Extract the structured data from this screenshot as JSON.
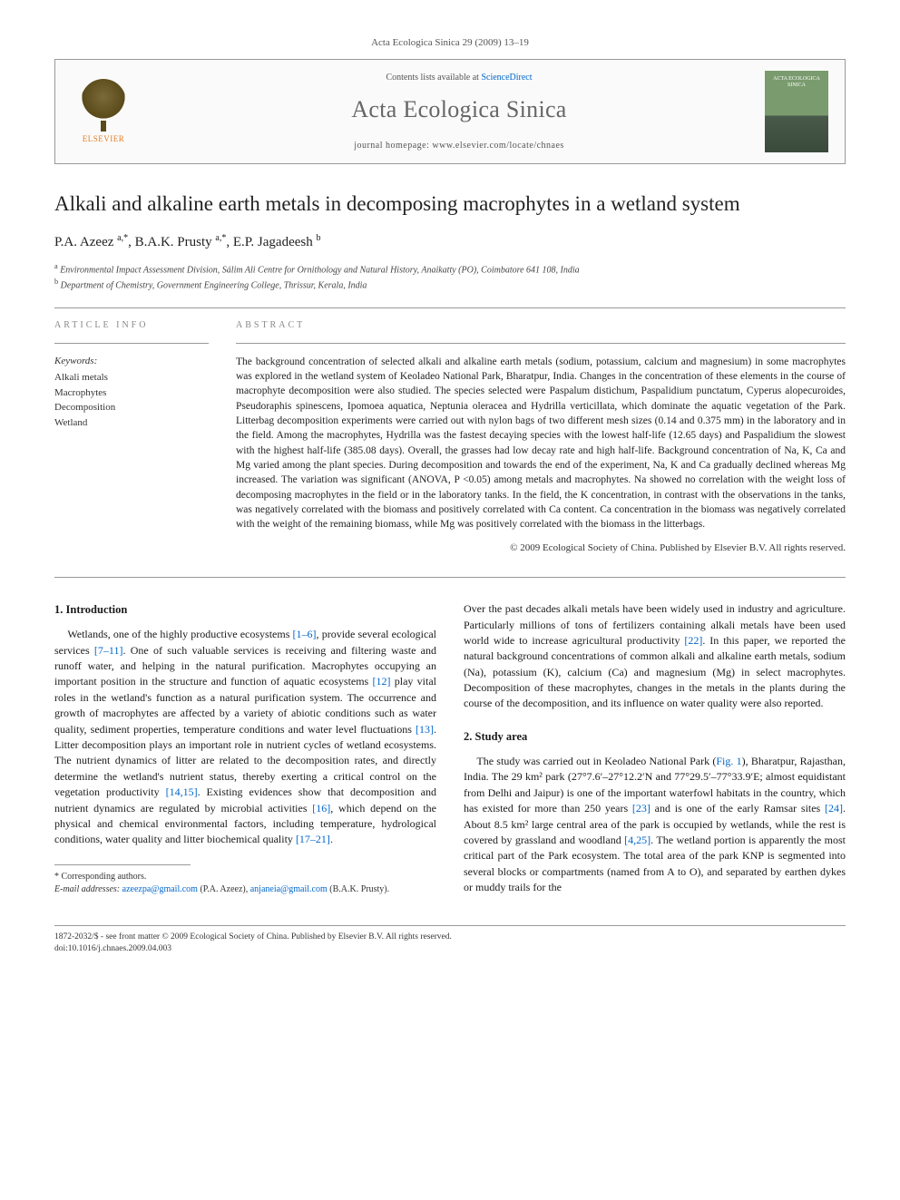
{
  "journal_ref": "Acta Ecologica Sinica 29 (2009) 13–19",
  "header": {
    "contents_prefix": "Contents lists available at ",
    "contents_link": "ScienceDirect",
    "journal_title": "Acta Ecologica Sinica",
    "homepage_prefix": "journal homepage: ",
    "homepage_url": "www.elsevier.com/locate/chnaes",
    "publisher_name": "ELSEVIER",
    "cover_text": "ACTA ECOLOGICA SINICA"
  },
  "article": {
    "title": "Alkali and alkaline earth metals in decomposing macrophytes in a wetland system",
    "authors_html": "P.A. Azeez <sup>a,*</sup>, B.A.K. Prusty <sup>a,*</sup>, E.P. Jagadeesh <sup>b</sup>",
    "affiliations": [
      {
        "sup": "a",
        "text": "Environmental Impact Assessment Division, Sálim Ali Centre for Ornithology and Natural History, Anaikatty (PO), Coimbatore 641 108, India"
      },
      {
        "sup": "b",
        "text": "Department of Chemistry, Government Engineering College, Thrissur, Kerala, India"
      }
    ]
  },
  "info_label": "ARTICLE INFO",
  "abstract_label": "ABSTRACT",
  "keywords_label": "Keywords:",
  "keywords": [
    "Alkali metals",
    "Macrophytes",
    "Decomposition",
    "Wetland"
  ],
  "abstract": "The background concentration of selected alkali and alkaline earth metals (sodium, potassium, calcium and magnesium) in some macrophytes was explored in the wetland system of Keoladeo National Park, Bharatpur, India. Changes in the concentration of these elements in the course of macrophyte decomposition were also studied. The species selected were Paspalum distichum, Paspalidium punctatum, Cyperus alopecuroides, Pseudoraphis spinescens, Ipomoea aquatica, Neptunia oleracea and Hydrilla verticillata, which dominate the aquatic vegetation of the Park. Litterbag decomposition experiments were carried out with nylon bags of two different mesh sizes (0.14 and 0.375 mm) in the laboratory and in the field. Among the macrophytes, Hydrilla was the fastest decaying species with the lowest half-life (12.65 days) and Paspalidium the slowest with the highest half-life (385.08 days). Overall, the grasses had low decay rate and high half-life. Background concentration of Na, K, Ca and Mg varied among the plant species. During decomposition and towards the end of the experiment, Na, K and Ca gradually declined whereas Mg increased. The variation was significant (ANOVA, P <0.05) among metals and macrophytes. Na showed no correlation with the weight loss of decomposing macrophytes in the field or in the laboratory tanks. In the field, the K concentration, in contrast with the observations in the tanks, was negatively correlated with the biomass and positively correlated with Ca content. Ca concentration in the biomass was negatively correlated with the weight of the remaining biomass, while Mg was positively correlated with the biomass in the litterbags.",
  "copyright": "© 2009 Ecological Society of China. Published by Elsevier B.V. All rights reserved.",
  "sections": {
    "intro_heading": "1. Introduction",
    "intro_p1": "Wetlands, one of the highly productive ecosystems [1–6], provide several ecological services [7–11]. One of such valuable services is receiving and filtering waste and runoff water, and helping in the natural purification. Macrophytes occupying an important position in the structure and function of aquatic ecosystems [12] play vital roles in the wetland's function as a natural purification system. The occurrence and growth of macrophytes are affected by a variety of abiotic conditions such as water quality, sediment properties, temperature conditions and water level fluctuations [13]. Litter decomposition plays an important role in nutrient cycles of wetland ecosystems. The nutrient dynamics of litter are related to the decomposition rates, and directly determine the wetland's nutrient status, thereby exerting a critical control on the vegetation productivity [14,15]. Existing evidences show that decomposition and nutrient dynamics are regulated by microbial activities [16], which depend on the physical and chemical environmental factors, including temperature, hydrological conditions, water quality and litter biochemical quality [17–21].",
    "intro_p2": "Over the past decades alkali metals have been widely used in industry and agriculture. Particularly millions of tons of fertilizers containing alkali metals have been used world wide to increase agricultural productivity [22]. In this paper, we reported the natural background concentrations of common alkali and alkaline earth metals, sodium (Na), potassium (K), calcium (Ca) and magnesium (Mg) in select macrophytes. Decomposition of these macrophytes, changes in the metals in the plants during the course of the decomposition, and its influence on water quality were also reported.",
    "study_heading": "2. Study area",
    "study_p1": "The study was carried out in Keoladeo National Park (Fig. 1), Bharatpur, Rajasthan, India. The 29 km² park (27°7.6′–27°12.2′N and 77°29.5′–77°33.9′E; almost equidistant from Delhi and Jaipur) is one of the important waterfowl habitats in the country, which has existed for more than 250 years [23] and is one of the early Ramsar sites [24]. About 8.5 km² large central area of the park is occupied by wetlands, while the rest is covered by grassland and woodland [4,25]. The wetland portion is apparently the most critical part of the Park ecosystem. The total area of the park KNP is segmented into several blocks or compartments (named from A to O), and separated by earthen dykes or muddy trails for the"
  },
  "footnotes": {
    "corr": "* Corresponding authors.",
    "email_label": "E-mail addresses:",
    "emails": [
      {
        "addr": "azeezpa@gmail.com",
        "who": "(P.A. Azeez)"
      },
      {
        "addr": "anjaneia@gmail.com",
        "who": "(B.A.K. Prusty)."
      }
    ]
  },
  "bottom": {
    "line1": "1872-2032/$ - see front matter © 2009 Ecological Society of China. Published by Elsevier B.V. All rights reserved.",
    "line2": "doi:10.1016/j.chnaes.2009.04.003"
  },
  "colors": {
    "link": "#0066cc",
    "text": "#1a1a1a",
    "muted": "#555555",
    "rule": "#999999",
    "elsevier_orange": "#e67e22",
    "cover_top": "#7a9b6e",
    "cover_bottom": "#3a4a3a"
  },
  "typography": {
    "body_pt": 13,
    "title_pt": 23,
    "journal_title_pt": 26,
    "abstract_pt": 11.5,
    "footnote_pt": 10
  }
}
